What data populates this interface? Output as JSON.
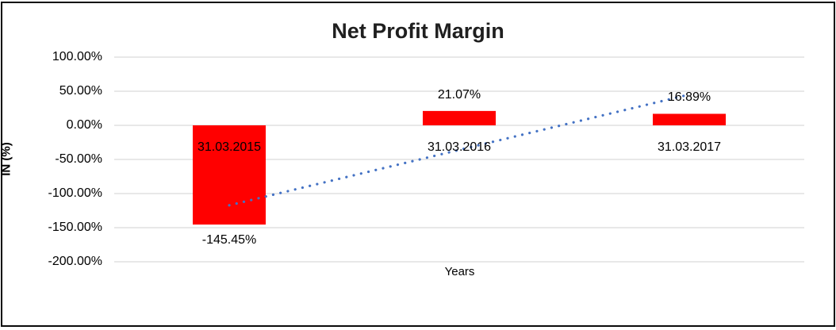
{
  "chart_data": {
    "type": "bar",
    "title": "Net Profit Margin",
    "xlabel": "Years",
    "ylabel": "IN (%)",
    "categories": [
      "31.03.2015",
      "31.03.2016",
      "31.03.2017"
    ],
    "series": [
      {
        "name": "Net Profit Margin",
        "values": [
          -145.45,
          21.07,
          16.89
        ]
      }
    ],
    "data_labels": [
      "-145.45%",
      "21.07%",
      "16.89%"
    ],
    "y_ticks": [
      {
        "value": 100,
        "label": "100.00%"
      },
      {
        "value": 50,
        "label": "50.00%"
      },
      {
        "value": 0,
        "label": "0.00%"
      },
      {
        "value": -50,
        "label": "-50.00%"
      },
      {
        "value": -100,
        "label": "-100.00%"
      },
      {
        "value": -150,
        "label": "-150.00%"
      },
      {
        "value": -200,
        "label": "-200.00%"
      }
    ],
    "ylim": [
      -200,
      100
    ],
    "grid": true,
    "legend": "none",
    "bar_color": "#FF0000",
    "gridline_color": "#D9D9D9",
    "trendline": {
      "type": "linear",
      "style": "dotted",
      "color": "#4472C4",
      "start": {
        "category_index": 0,
        "value": -117.2
      },
      "end": {
        "category_index": 2,
        "value": 45.2
      }
    }
  }
}
